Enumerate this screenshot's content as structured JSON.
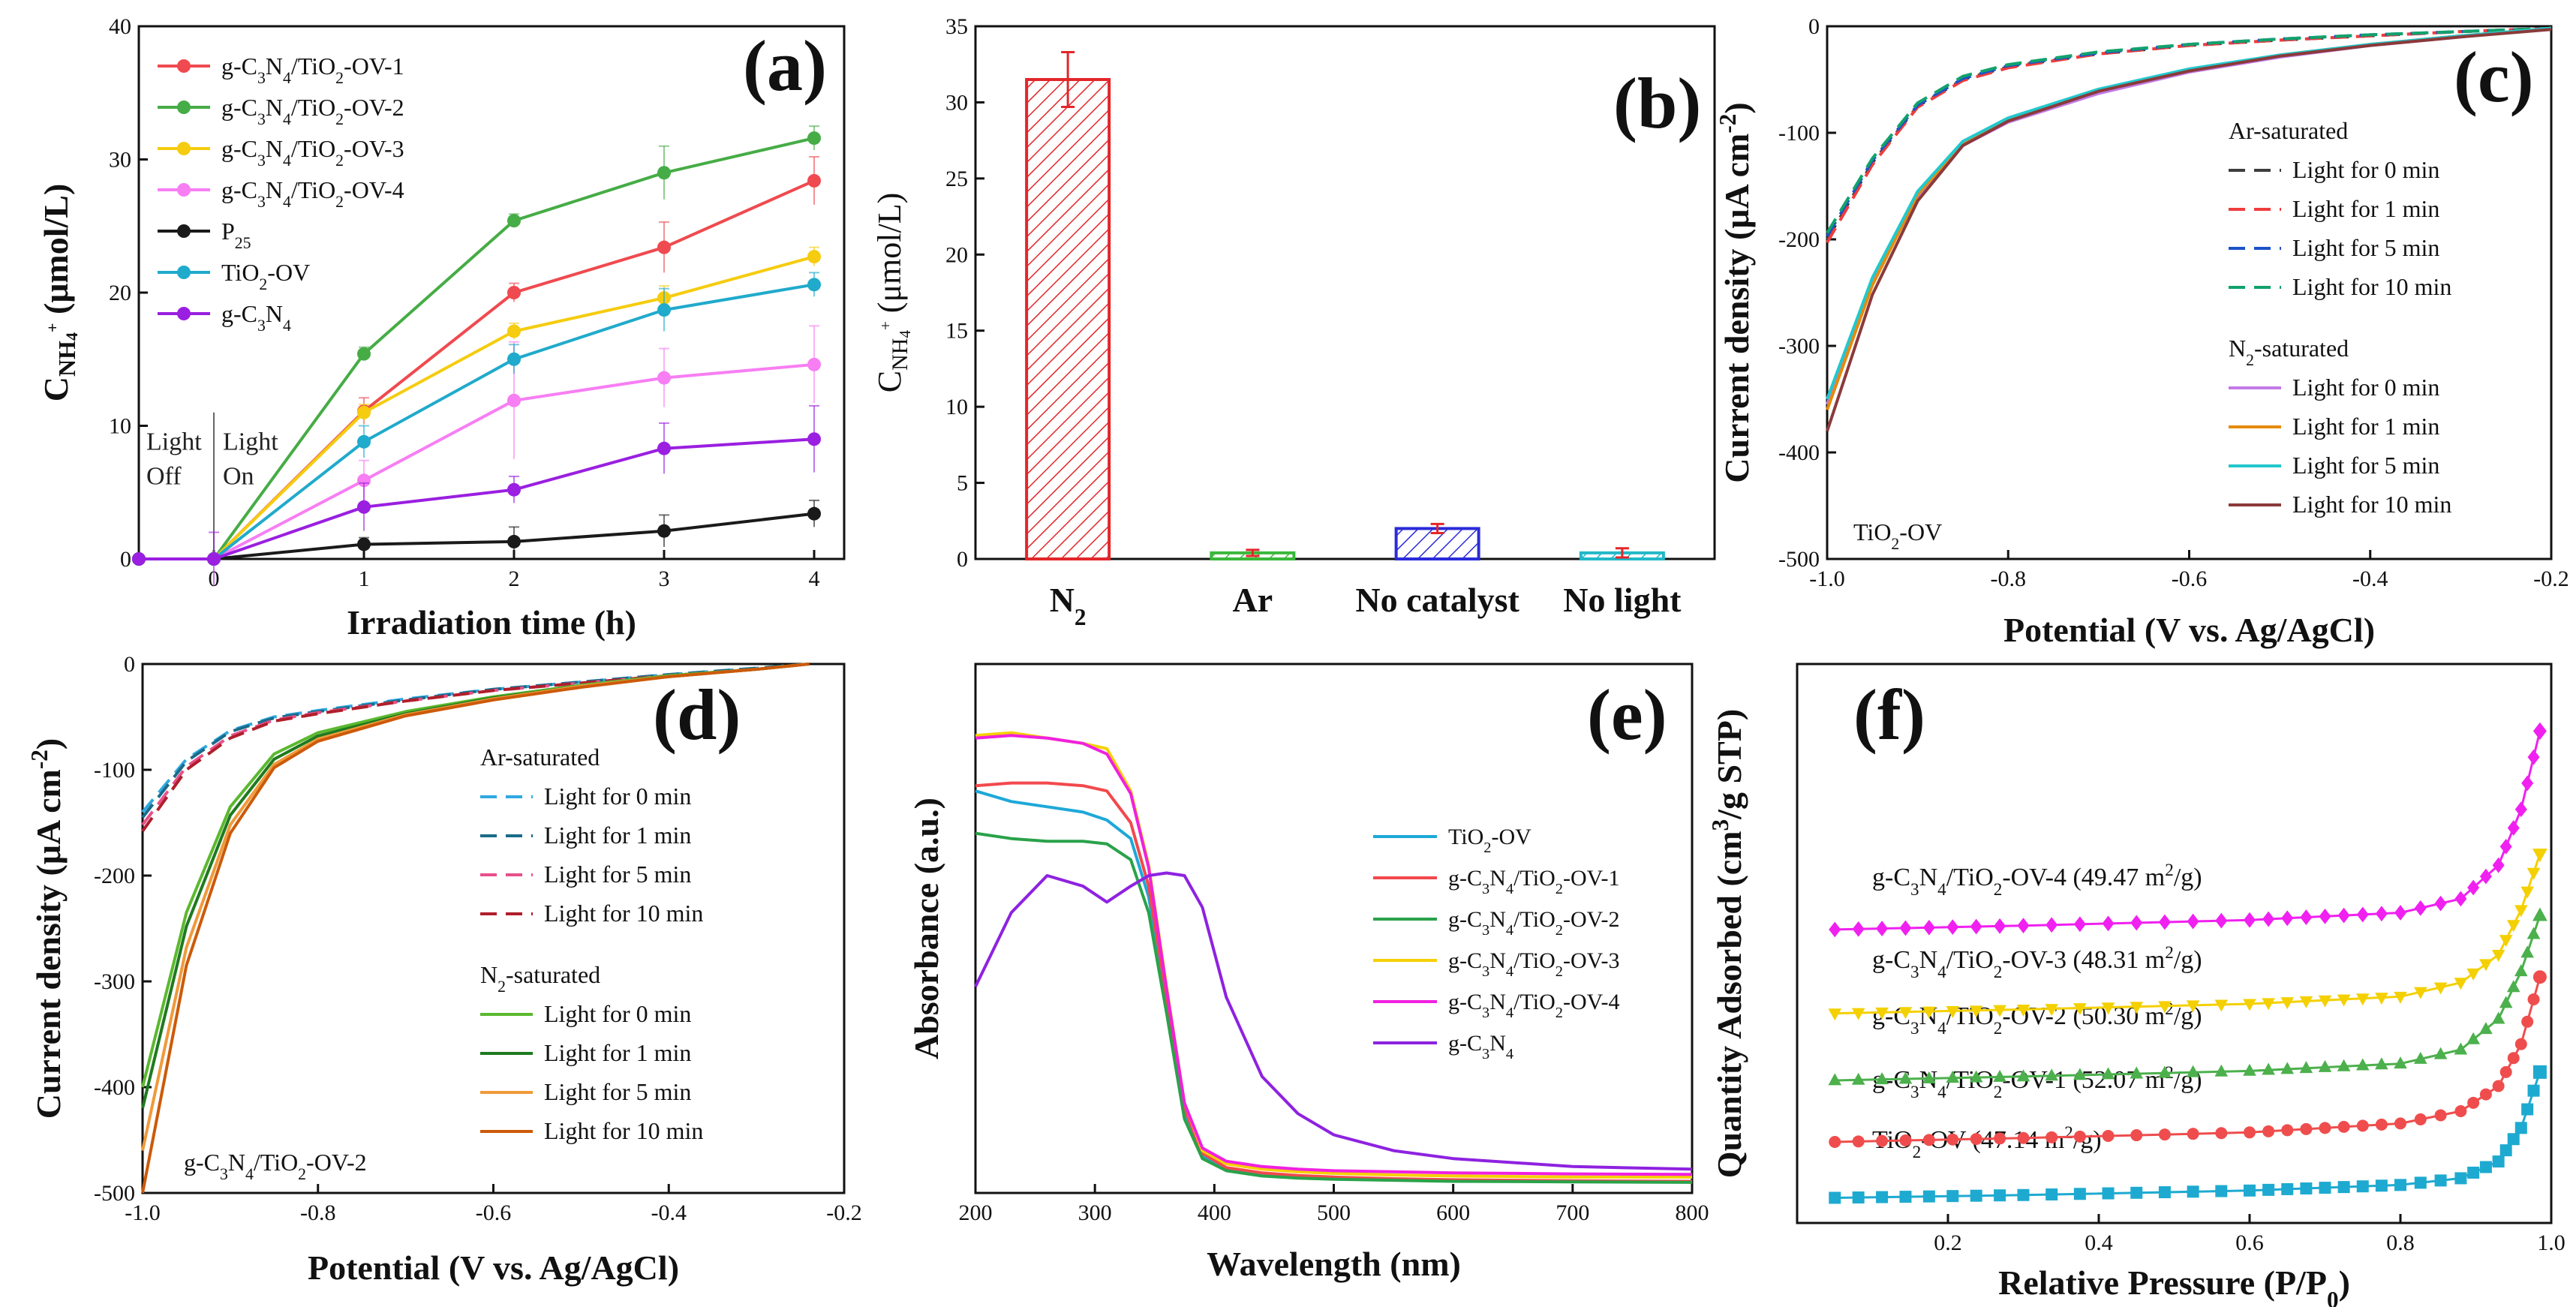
{
  "chart_data": [
    {
      "panel": "(a)",
      "type": "line",
      "xlabel": "Irradiation time (h)",
      "ylabel": "C_NH4+ (μmol/L)",
      "xlim": [
        -0.5,
        4.2
      ],
      "ylim": [
        0,
        40
      ],
      "xticks": [
        0,
        1,
        2,
        3,
        4
      ],
      "yticks": [
        0,
        10,
        20,
        30,
        40
      ],
      "annotations": [
        "Light",
        "Off",
        "Light",
        "On"
      ],
      "x": [
        -0.5,
        0,
        1,
        2,
        3,
        4
      ],
      "series": [
        {
          "name": "g-C3N4/TiO2-OV-1",
          "color": "#ef4a4f",
          "values": [
            0,
            0,
            11.1,
            20.0,
            23.4,
            28.4
          ],
          "err": [
            0,
            0,
            1.0,
            0.7,
            1.9,
            1.8
          ]
        },
        {
          "name": "g-C3N4/TiO2-OV-2",
          "color": "#46ac46",
          "values": [
            0,
            0,
            15.4,
            25.4,
            29.0,
            31.6
          ],
          "err": [
            0,
            0,
            0.5,
            0.5,
            2.0,
            0.9
          ]
        },
        {
          "name": "g-C3N4/TiO2-OV-3",
          "color": "#f5cc0f",
          "values": [
            0,
            0,
            11.0,
            17.1,
            19.6,
            22.7
          ],
          "err": [
            0,
            0,
            0.6,
            0.6,
            0.9,
            0.7
          ]
        },
        {
          "name": "g-C3N4/TiO2-OV-4",
          "color": "#f77ef3",
          "values": [
            0,
            0,
            5.9,
            11.9,
            13.6,
            14.6
          ],
          "err": [
            0,
            0,
            1.5,
            4.4,
            2.2,
            2.9
          ]
        },
        {
          "name": "P25",
          "color": "#1a1a1a",
          "values": [
            0,
            0,
            1.1,
            1.3,
            2.1,
            3.4
          ],
          "err": [
            0,
            0,
            0.5,
            1.1,
            1.2,
            1.0
          ]
        },
        {
          "name": "TiO2-OV",
          "color": "#20aacb",
          "values": [
            0,
            0,
            8.8,
            15.0,
            18.7,
            20.6
          ],
          "err": [
            0,
            0,
            1.2,
            1.1,
            1.6,
            0.9
          ]
        },
        {
          "name": "g-C3N4",
          "color": "#9a1fe0",
          "values": [
            0,
            0,
            3.9,
            5.2,
            8.3,
            9.0
          ],
          "err": [
            0,
            2.0,
            1.8,
            1.0,
            1.9,
            2.5
          ]
        }
      ]
    },
    {
      "panel": "(b)",
      "type": "bar",
      "categories": [
        "N2",
        "Ar",
        "No catalyst",
        "No light"
      ],
      "values": [
        31.5,
        0.4,
        2.0,
        0.4
      ],
      "err": [
        1.8,
        0.2,
        0.3,
        0.3
      ],
      "colors": [
        "#e2262a",
        "#3bb83b",
        "#2b2bd9",
        "#22b8c8"
      ],
      "ylabel": "C_NH4+ (μmol/L)",
      "ylim": [
        0,
        35
      ],
      "yticks": [
        0,
        5,
        10,
        15,
        20,
        25,
        30,
        35
      ]
    },
    {
      "panel": "(c)",
      "type": "line",
      "xlabel": "Potential (V vs. Ag/AgCl)",
      "ylabel": "Current density (μA cm-2)",
      "xlim": [
        -1.0,
        -0.2
      ],
      "ylim": [
        -500,
        0
      ],
      "xticks": [
        -1.0,
        -0.8,
        -0.6,
        -0.4,
        -0.2
      ],
      "yticks": [
        -500,
        -400,
        -300,
        -200,
        -100,
        0
      ],
      "sample_label": "TiO2-OV",
      "legend_group_1": "Ar-saturated",
      "legend_group_2": "N2-saturated",
      "x": [
        -1.0,
        -0.95,
        -0.9,
        -0.85,
        -0.8,
        -0.7,
        -0.6,
        -0.5,
        -0.4,
        -0.3,
        -0.2
      ],
      "series": [
        {
          "name": "Light for 0 min",
          "group": "Ar",
          "color": "#3d3d3d",
          "values": [
            -200,
            -128,
            -75,
            -50,
            -38,
            -26,
            -18,
            -13,
            -9,
            -5,
            -2
          ]
        },
        {
          "name": "Light for 1 min",
          "group": "Ar",
          "color": "#f03c3c",
          "values": [
            -203,
            -130,
            -76,
            -51,
            -39,
            -26,
            -18,
            -13,
            -9,
            -5,
            -2
          ]
        },
        {
          "name": "Light for 5 min",
          "group": "Ar",
          "color": "#1c52c8",
          "values": [
            -197,
            -126,
            -74,
            -49,
            -37,
            -25,
            -17,
            -12,
            -8,
            -5,
            -2
          ]
        },
        {
          "name": "Light for 10 min",
          "group": "Ar",
          "color": "#12a26c",
          "values": [
            -194,
            -124,
            -72,
            -47,
            -36,
            -24,
            -17,
            -12,
            -8,
            -5,
            -2
          ]
        },
        {
          "name": "Light for 0 min",
          "group": "N2",
          "color": "#c27ae6",
          "values": [
            -355,
            -240,
            -160,
            -112,
            -90,
            -63,
            -43,
            -29,
            -18,
            -10,
            -2
          ]
        },
        {
          "name": "Light for 1 min",
          "group": "N2",
          "color": "#e58b0b",
          "values": [
            -360,
            -243,
            -158,
            -110,
            -88,
            -60,
            -41,
            -27,
            -17,
            -9,
            -2
          ]
        },
        {
          "name": "Light for 5 min",
          "group": "N2",
          "color": "#22c8cc",
          "values": [
            -350,
            -236,
            -155,
            -108,
            -86,
            -59,
            -40,
            -27,
            -17,
            -9,
            -2
          ]
        },
        {
          "name": "Light for 10 min",
          "group": "N2",
          "color": "#8b3a3a",
          "values": [
            -380,
            -252,
            -164,
            -112,
            -89,
            -61,
            -42,
            -28,
            -18,
            -10,
            -3
          ]
        }
      ]
    },
    {
      "panel": "(d)",
      "type": "line",
      "xlabel": "Potential (V vs. Ag/AgCl)",
      "ylabel": "Current density (μA cm-2)",
      "xlim": [
        -1.0,
        -0.2
      ],
      "ylim": [
        -500,
        0
      ],
      "xticks": [
        -1.0,
        -0.8,
        -0.6,
        -0.4,
        -0.2
      ],
      "yticks": [
        -500,
        -400,
        -300,
        -200,
        -100,
        0
      ],
      "sample_label": "g-C3N4/TiO2-OV-2",
      "legend_group_1": "Ar-saturated",
      "legend_group_2": "N2-saturated",
      "x": [
        -1.0,
        -0.95,
        -0.9,
        -0.85,
        -0.8,
        -0.7,
        -0.6,
        -0.5,
        -0.4,
        -0.3,
        -0.24
      ],
      "series": [
        {
          "name": "Light for 0 min",
          "group": "Ar",
          "color": "#2fa8e0",
          "values": [
            -140,
            -90,
            -63,
            -50,
            -44,
            -33,
            -24,
            -17,
            -10,
            -4,
            0
          ]
        },
        {
          "name": "Light for 1 min",
          "group": "Ar",
          "color": "#1a6b8a",
          "values": [
            -145,
            -92,
            -64,
            -51,
            -45,
            -34,
            -24,
            -17,
            -10,
            -4,
            0
          ]
        },
        {
          "name": "Light for 5 min",
          "group": "Ar",
          "color": "#e8508a",
          "values": [
            -152,
            -97,
            -68,
            -53,
            -46,
            -35,
            -25,
            -18,
            -11,
            -5,
            0
          ]
        },
        {
          "name": "Light for 10 min",
          "group": "Ar",
          "color": "#b01e2c",
          "values": [
            -158,
            -100,
            -70,
            -54,
            -47,
            -35,
            -25,
            -18,
            -11,
            -5,
            0
          ]
        },
        {
          "name": "Light for 0 min",
          "group": "N2",
          "color": "#5bb82f",
          "values": [
            -400,
            -235,
            -135,
            -85,
            -65,
            -45,
            -31,
            -20,
            -11,
            -5,
            0
          ]
        },
        {
          "name": "Light for 1 min",
          "group": "N2",
          "color": "#1f7a1f",
          "values": [
            -420,
            -248,
            -143,
            -90,
            -68,
            -47,
            -32,
            -21,
            -12,
            -5,
            0
          ]
        },
        {
          "name": "Light for 5 min",
          "group": "N2",
          "color": "#f09a3a",
          "values": [
            -460,
            -268,
            -152,
            -95,
            -71,
            -48,
            -33,
            -21,
            -12,
            -5,
            0
          ]
        },
        {
          "name": "Light for 10 min",
          "group": "N2",
          "color": "#cc5a0a",
          "values": [
            -500,
            -285,
            -160,
            -98,
            -73,
            -49,
            -34,
            -22,
            -12,
            -5,
            0
          ]
        }
      ]
    },
    {
      "panel": "(e)",
      "type": "line",
      "xlabel": "Wavelength (nm)",
      "ylabel": "Absorbance (a.u.)",
      "xlim": [
        200,
        800
      ],
      "ylim": [
        0,
        1
      ],
      "xticks": [
        200,
        300,
        400,
        500,
        600,
        700,
        800
      ],
      "x": [
        200,
        230,
        260,
        290,
        310,
        330,
        345,
        360,
        375,
        390,
        410,
        440,
        470,
        500,
        550,
        600,
        700,
        800
      ],
      "series": [
        {
          "name": "TiO2-OV",
          "color": "#1ea8d8",
          "values": [
            0.76,
            0.74,
            0.73,
            0.72,
            0.705,
            0.67,
            0.56,
            0.36,
            0.15,
            0.07,
            0.045,
            0.035,
            0.03,
            0.028,
            0.025,
            0.024,
            0.022,
            0.022
          ]
        },
        {
          "name": "g-C3N4/TiO2-OV-1",
          "color": "#f2494d",
          "values": [
            0.77,
            0.775,
            0.775,
            0.77,
            0.76,
            0.7,
            0.58,
            0.37,
            0.16,
            0.075,
            0.048,
            0.038,
            0.033,
            0.03,
            0.027,
            0.025,
            0.023,
            0.022
          ]
        },
        {
          "name": "g-C3N4/TiO2-OV-2",
          "color": "#2aa24a",
          "values": [
            0.68,
            0.67,
            0.665,
            0.665,
            0.66,
            0.63,
            0.53,
            0.34,
            0.14,
            0.065,
            0.042,
            0.032,
            0.028,
            0.026,
            0.024,
            0.022,
            0.021,
            0.02
          ]
        },
        {
          "name": "g-C3N4/TiO2-OV-3",
          "color": "#f5d000",
          "values": [
            0.865,
            0.87,
            0.86,
            0.85,
            0.84,
            0.76,
            0.62,
            0.39,
            0.17,
            0.08,
            0.055,
            0.045,
            0.04,
            0.037,
            0.034,
            0.032,
            0.03,
            0.03
          ]
        },
        {
          "name": "g-C3N4/TiO2-OV-4",
          "color": "#f020e0",
          "values": [
            0.86,
            0.865,
            0.86,
            0.85,
            0.83,
            0.755,
            0.615,
            0.385,
            0.17,
            0.085,
            0.06,
            0.05,
            0.045,
            0.042,
            0.04,
            0.038,
            0.036,
            0.035
          ]
        },
        {
          "name": "g-C3N4",
          "color": "#8e22e0",
          "values": [
            0.39,
            0.53,
            0.6,
            0.58,
            0.55,
            0.58,
            0.6,
            0.605,
            0.6,
            0.54,
            0.37,
            0.22,
            0.15,
            0.11,
            0.08,
            0.065,
            0.05,
            0.045
          ]
        }
      ]
    },
    {
      "panel": "(f)",
      "type": "line",
      "xlabel": "Relative Pressure (P/P0)",
      "ylabel": "Quantity Adsorbed (cm3/g STP)",
      "xlim": [
        0,
        1.0
      ],
      "ylim": [
        0,
        1
      ],
      "xticks": [
        0.2,
        0.4,
        0.6,
        0.8,
        1.0
      ],
      "series": [
        {
          "name": "TiO2-OV",
          "label": "TiO2-OV (47.14 m2/g)",
          "color": "#1eaad0",
          "marker": "square",
          "x": [
            0.05,
            0.3,
            0.6,
            0.8,
            0.88,
            0.93,
            0.96,
            0.985
          ],
          "values": [
            0.045,
            0.05,
            0.058,
            0.068,
            0.08,
            0.11,
            0.17,
            0.27
          ]
        },
        {
          "name": "g-C3N4/TiO2-OV-1",
          "label": "g-C3N4/TiO2-OV-1 (52.07 m2/g)",
          "color": "#ef4d4d",
          "marker": "circle",
          "x": [
            0.05,
            0.3,
            0.6,
            0.8,
            0.88,
            0.93,
            0.96,
            0.985
          ],
          "values": [
            0.145,
            0.152,
            0.162,
            0.178,
            0.2,
            0.245,
            0.32,
            0.44
          ]
        },
        {
          "name": "g-C3N4/TiO2-OV-2",
          "label": "g-C3N4/TiO2-OV-2 (50.30 m2/g)",
          "color": "#4cb04c",
          "marker": "triangle",
          "x": [
            0.05,
            0.3,
            0.6,
            0.8,
            0.88,
            0.93,
            0.96,
            0.985
          ],
          "values": [
            0.255,
            0.262,
            0.272,
            0.285,
            0.31,
            0.365,
            0.45,
            0.55
          ]
        },
        {
          "name": "g-C3N4/TiO2-OV-3",
          "label": "g-C3N4/TiO2-OV-3 (48.31 m2/g)",
          "color": "#f4d000",
          "marker": "triangle-down",
          "x": [
            0.05,
            0.3,
            0.6,
            0.8,
            0.88,
            0.93,
            0.96,
            0.985
          ],
          "values": [
            0.375,
            0.382,
            0.392,
            0.405,
            0.43,
            0.48,
            0.56,
            0.66
          ]
        },
        {
          "name": "g-C3N4/TiO2-OV-4",
          "label": "g-C3N4/TiO2-OV-4 (49.47 m2/g)",
          "color": "#f020f0",
          "marker": "diamond",
          "x": [
            0.05,
            0.3,
            0.6,
            0.8,
            0.88,
            0.93,
            0.96,
            0.985
          ],
          "values": [
            0.525,
            0.532,
            0.542,
            0.555,
            0.58,
            0.64,
            0.74,
            0.88
          ]
        }
      ]
    }
  ]
}
